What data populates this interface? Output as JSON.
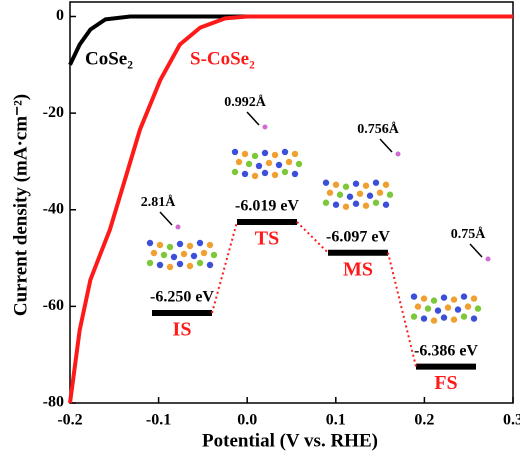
{
  "chart_data": [
    {
      "type": "line",
      "xlabel": "Potential (V vs. RHE)",
      "ylabel": "Current density (mA·cm⁻²)",
      "xlim": [
        -0.2,
        0.3
      ],
      "ylim": [
        -80,
        3
      ],
      "xticks": [
        -0.2,
        -0.1,
        {
          "value": 0,
          "label": "0.0"
        },
        0.1,
        0.2,
        0.3
      ],
      "yticks": [
        0,
        -20,
        -40,
        -60,
        -80
      ],
      "series": [
        {
          "name": "CoSe₂",
          "color": "#000000",
          "x": [
            -0.2,
            -0.189,
            -0.177,
            -0.16,
            -0.132,
            0.3
          ],
          "values": [
            -10,
            -5.8,
            -2.7,
            -0.6,
            0,
            0
          ]
        },
        {
          "name": "S-CoSe₂",
          "color": "#ff1a1a",
          "x": [
            -0.2,
            -0.189,
            -0.177,
            -0.166,
            -0.155,
            -0.138,
            -0.121,
            -0.098,
            -0.076,
            -0.053,
            -0.025,
            0.0,
            0.3
          ],
          "values": [
            -80,
            -64.9,
            -54.5,
            -49.3,
            -44.1,
            -33.8,
            -23.4,
            -13.1,
            -5.8,
            -2.3,
            -0.4,
            0,
            0
          ]
        }
      ]
    },
    {
      "type": "energy-diagram",
      "states": [
        "IS",
        "TS",
        "MS",
        "FS"
      ],
      "values": [
        -6.25,
        -6.019,
        -6.097,
        -6.386
      ],
      "value_labels": [
        "-6.250 eV",
        "-6.019 eV",
        "-6.097 eV",
        "-6.386 eV"
      ],
      "bond_lengths": [
        "2.81Å",
        "0.992Å",
        "0.756Å",
        "0.75Å"
      ],
      "color": "#000000",
      "state_color": "#ff1a1a",
      "connector_color": "#ff1a1a"
    }
  ]
}
